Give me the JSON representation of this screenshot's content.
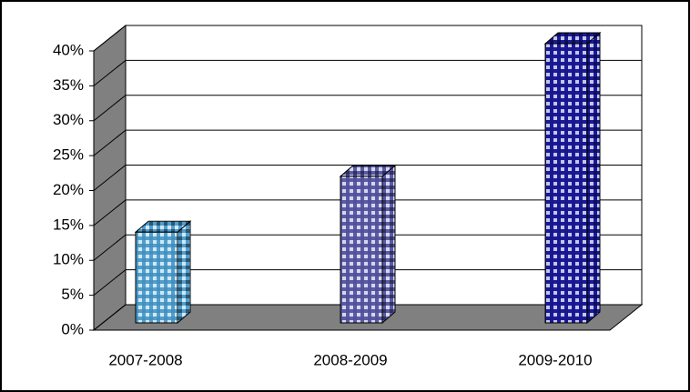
{
  "chart_data": {
    "type": "bar3d",
    "categories": [
      "2007-2008",
      "2008-2009",
      "2009-2010"
    ],
    "values": [
      13,
      21,
      40
    ],
    "colors": [
      "#4f9fcf",
      "#5a5aa8",
      "#1a1a9a"
    ],
    "ylim": [
      0,
      40
    ],
    "yticks": [
      {
        "value": 0,
        "label": "0%"
      },
      {
        "value": 5,
        "label": "5%"
      },
      {
        "value": 10,
        "label": "10%"
      },
      {
        "value": 15,
        "label": "15%"
      },
      {
        "value": 20,
        "label": "20%"
      },
      {
        "value": 25,
        "label": "25%"
      },
      {
        "value": 30,
        "label": "30%"
      },
      {
        "value": 35,
        "label": "35%"
      },
      {
        "value": 40,
        "label": "40%"
      }
    ],
    "grid": true
  }
}
